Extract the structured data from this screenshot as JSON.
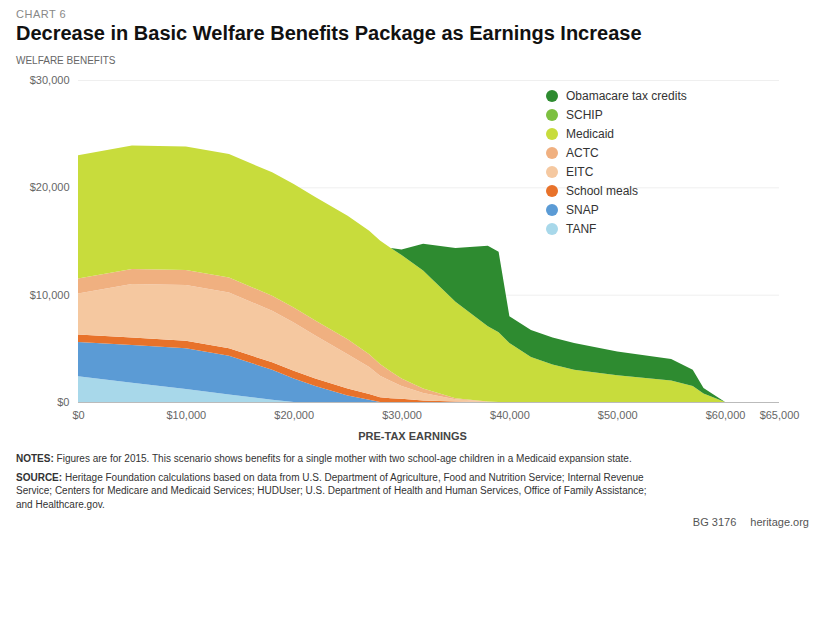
{
  "chart_data": {
    "type": "area",
    "stacked": true,
    "subtitle": "CHART 6",
    "title": "Decrease in Basic Welfare Benefits Package as Earnings Increase",
    "ylabel": "WELFARE BENEFITS",
    "xlabel": "PRE-TAX EARNINGS",
    "x": [
      0,
      5000,
      10000,
      14000,
      18000,
      20000,
      22000,
      25000,
      27000,
      28000,
      29000,
      30000,
      32000,
      35000,
      38000,
      39000,
      40000,
      42000,
      44000,
      46000,
      50000,
      55000,
      57000,
      58000,
      60000,
      65000
    ],
    "series": [
      {
        "name": "TANF",
        "color": "#A8D8EA",
        "values": [
          2400,
          1800,
          1200,
          700,
          200,
          0,
          0,
          0,
          0,
          0,
          0,
          0,
          0,
          0,
          0,
          0,
          0,
          0,
          0,
          0,
          0,
          0,
          0,
          0,
          0,
          0
        ]
      },
      {
        "name": "SNAP",
        "color": "#5B9BD5",
        "values": [
          3200,
          3500,
          3800,
          3600,
          2800,
          2200,
          1500,
          600,
          200,
          0,
          0,
          0,
          0,
          0,
          0,
          0,
          0,
          0,
          0,
          0,
          0,
          0,
          0,
          0,
          0,
          0
        ]
      },
      {
        "name": "School meals",
        "color": "#E8722A",
        "values": [
          700,
          700,
          700,
          700,
          700,
          700,
          700,
          650,
          550,
          450,
          350,
          300,
          150,
          50,
          0,
          0,
          0,
          0,
          0,
          0,
          0,
          0,
          0,
          0,
          0,
          0
        ]
      },
      {
        "name": "EITC",
        "color": "#F5C8A0",
        "values": [
          3800,
          5000,
          5200,
          5200,
          4800,
          4500,
          4000,
          3200,
          2500,
          2000,
          1600,
          1200,
          700,
          200,
          50,
          0,
          0,
          0,
          0,
          0,
          0,
          0,
          0,
          0,
          0,
          0
        ]
      },
      {
        "name": "ACTC",
        "color": "#F0B080",
        "values": [
          1400,
          1400,
          1400,
          1400,
          1400,
          1400,
          1400,
          1400,
          1200,
          1100,
          900,
          700,
          400,
          100,
          0,
          0,
          0,
          0,
          0,
          0,
          0,
          0,
          0,
          0,
          0,
          0
        ]
      },
      {
        "name": "Medicaid",
        "color": "#C8DC3C",
        "values": [
          11500,
          11500,
          11500,
          11500,
          11500,
          11500,
          11500,
          11500,
          11500,
          11500,
          11500,
          11500,
          11000,
          9000,
          7000,
          6500,
          5500,
          4200,
          3500,
          3000,
          2500,
          2000,
          1500,
          800,
          0,
          0
        ]
      },
      {
        "name": "SCHIP",
        "color": "#7DC040",
        "values": [
          0,
          0,
          0,
          0,
          0,
          0,
          0,
          0,
          0,
          0,
          0,
          0,
          0,
          0,
          0,
          0,
          0,
          0,
          0,
          0,
          0,
          0,
          0,
          0,
          0,
          0
        ]
      },
      {
        "name": "Obamacare tax credits",
        "color": "#2E8B30",
        "values": [
          0,
          0,
          0,
          0,
          0,
          0,
          0,
          0,
          0,
          0,
          0,
          500,
          2500,
          5000,
          7500,
          7500,
          2500,
          2500,
          2500,
          2500,
          2200,
          2000,
          1500,
          500,
          0,
          0
        ]
      }
    ],
    "xlim": [
      0,
      65000
    ],
    "ylim": [
      0,
      30000
    ],
    "xticks": [
      {
        "value": 0,
        "label": "$0"
      },
      {
        "value": 10000,
        "label": "$10,000"
      },
      {
        "value": 20000,
        "label": "$20,000"
      },
      {
        "value": 30000,
        "label": "$30,000"
      },
      {
        "value": 40000,
        "label": "$40,000"
      },
      {
        "value": 50000,
        "label": "$50,000"
      },
      {
        "value": 60000,
        "label": "$60,000"
      },
      {
        "value": 65000,
        "label": "$65,000"
      }
    ],
    "yticks": [
      {
        "value": 0,
        "label": "$0"
      },
      {
        "value": 10000,
        "label": "$10,000"
      },
      {
        "value": 20000,
        "label": "$20,000"
      },
      {
        "value": 30000,
        "label": "$30,000"
      }
    ],
    "grid": true,
    "legend": "upper right",
    "annotations": [
      {
        "label": "NOTES:",
        "text": "Figures are for 2015. This scenario shows benefits for a single mother with two school-age children in a Medicaid expansion state."
      },
      {
        "label": "SOURCE:",
        "text": "Heritage Foundation calculations based on data from U.S. Department of Agriculture, Food and Nutrition Service; Internal Revenue\nService; Centers for Medicare and Medicaid Services; HUDUser; U.S. Department of Health and Human Services, Office of Family Assistance;\nand Healthcare.gov."
      },
      {
        "text": "BG 3176"
      },
      {
        "text": "heritage.org"
      }
    ]
  }
}
